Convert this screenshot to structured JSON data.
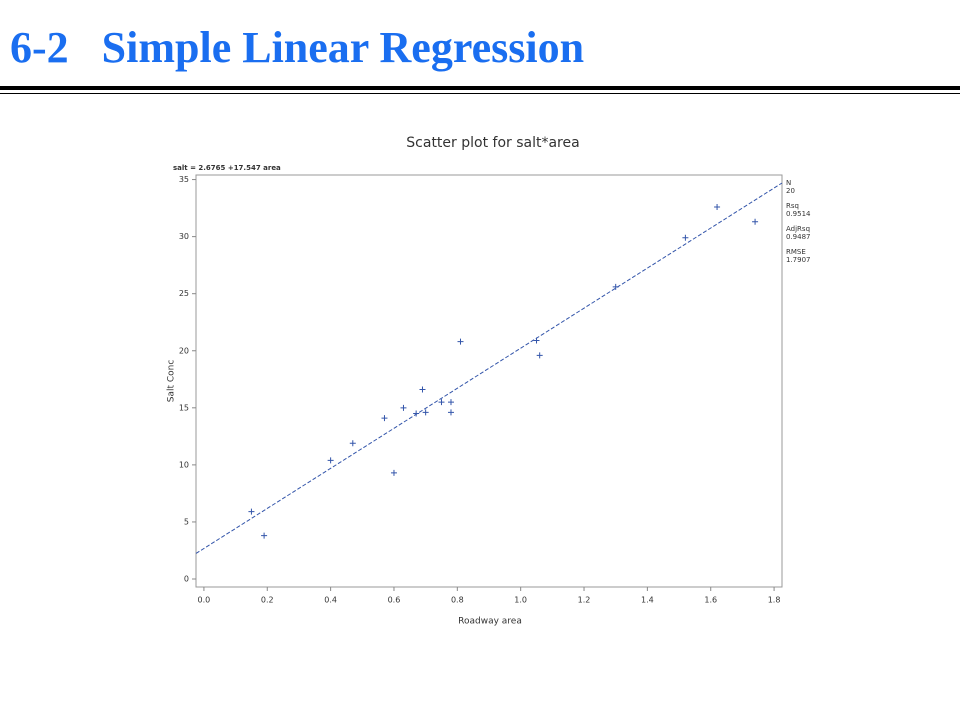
{
  "header": {
    "title": "6-2   Simple Linear Regression"
  },
  "chart_data": {
    "type": "scatter",
    "title": "Scatter plot for salt*area",
    "x_label": "Roadway area",
    "y_label": "Salt Conc",
    "fit_label": "salt = 2.6765 +17.547 area",
    "fit": {
      "intercept": 2.6765,
      "slope": 17.547
    },
    "stats": [
      {
        "label": "N",
        "value": 20
      },
      {
        "label": "Rsq",
        "value": 0.9514
      },
      {
        "label": "AdjRsq",
        "value": 0.9487
      },
      {
        "label": "RMSE",
        "value": 1.7907
      }
    ],
    "color": "#3355aa",
    "x": [
      0.15,
      0.19,
      0.4,
      0.47,
      0.57,
      0.6,
      0.63,
      0.67,
      0.69,
      0.7,
      0.75,
      0.78,
      0.78,
      0.81,
      1.05,
      1.06,
      1.3,
      1.52,
      1.62,
      1.74
    ],
    "values": [
      5.9,
      3.8,
      10.4,
      11.9,
      14.1,
      9.3,
      15.0,
      14.5,
      16.6,
      14.6,
      15.5,
      15.5,
      14.6,
      20.8,
      20.9,
      19.6,
      25.6,
      29.9,
      32.6,
      31.3
    ],
    "xlim": [
      -0.025,
      1.825
    ],
    "xticks": [
      {
        "value": 0,
        "label": "0.0"
      },
      0.2,
      0.4,
      0.6,
      0.8,
      {
        "value": 1,
        "label": "1.0"
      },
      1.2,
      1.4,
      1.6,
      1.8
    ],
    "ylim": [
      -0.7,
      35.4
    ],
    "yticks": [
      0,
      5,
      10,
      15,
      20,
      25,
      30,
      35
    ]
  }
}
